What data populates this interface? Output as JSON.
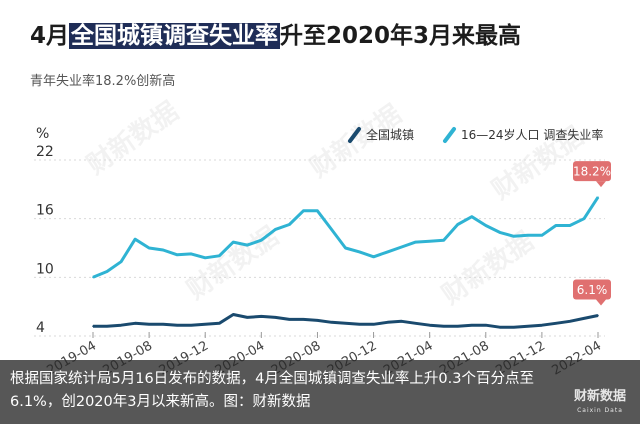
{
  "header": {
    "title_prefix": "4月",
    "title_highlight": "全国城镇调查失业率",
    "title_suffix": "升至2020年3月来最高",
    "subtitle": "青年失业率18.2%创新高"
  },
  "caption": {
    "text": "根据国家统计局5月16日发布的数据，4月全国城镇调查失业率上升0.3个百分点至6.1%，创2020年3月以来新高。图：财新数据",
    "logo": "财新数据",
    "logo_sub": "Caixin Data"
  },
  "watermark": "财新数据",
  "colors": {
    "national": "#1a4a6e",
    "youth": "#2fb3d3",
    "label_bg": "#e07070",
    "grid": "#d9d9d9"
  },
  "chart_data": {
    "type": "line",
    "unit_label": "%",
    "ylim": [
      4,
      22
    ],
    "yticks": [
      4,
      10,
      16,
      22
    ],
    "x": [
      "2019-04",
      "2019-05",
      "2019-06",
      "2019-07",
      "2019-08",
      "2019-09",
      "2019-10",
      "2019-11",
      "2019-12",
      "2020-01",
      "2020-02",
      "2020-03",
      "2020-04",
      "2020-05",
      "2020-06",
      "2020-07",
      "2020-08",
      "2020-09",
      "2020-10",
      "2020-11",
      "2020-12",
      "2021-01",
      "2021-02",
      "2021-03",
      "2021-04",
      "2021-05",
      "2021-06",
      "2021-07",
      "2021-08",
      "2021-09",
      "2021-10",
      "2021-11",
      "2021-12",
      "2022-01",
      "2022-02",
      "2022-03",
      "2022-04"
    ],
    "xtick_labels": [
      "2019-04",
      "2019-08",
      "2019-12",
      "2020-04",
      "2020-08",
      "2020-12",
      "2021-04",
      "2021-08",
      "2021-12",
      "2022-04"
    ],
    "legend_position": "top-right",
    "series": [
      {
        "name": "全国城镇",
        "values": [
          5.0,
          5.0,
          5.1,
          5.3,
          5.2,
          5.2,
          5.1,
          5.1,
          5.2,
          5.3,
          6.2,
          5.9,
          6.0,
          5.9,
          5.7,
          5.7,
          5.6,
          5.4,
          5.3,
          5.2,
          5.2,
          5.4,
          5.5,
          5.3,
          5.1,
          5.0,
          5.0,
          5.1,
          5.1,
          4.9,
          4.9,
          5.0,
          5.1,
          5.3,
          5.5,
          5.8,
          6.1
        ],
        "end_label": "6.1%"
      },
      {
        "name": "16—24岁人口 调查失业率",
        "values": [
          10.0,
          10.6,
          11.6,
          13.9,
          13.0,
          12.8,
          12.3,
          12.4,
          12.0,
          12.2,
          13.6,
          13.3,
          13.8,
          14.9,
          15.4,
          16.8,
          16.8,
          14.9,
          13.0,
          12.6,
          12.1,
          12.6,
          13.1,
          13.6,
          13.7,
          13.8,
          15.4,
          16.2,
          15.3,
          14.6,
          14.2,
          14.3,
          14.3,
          15.3,
          15.3,
          16.0,
          18.2
        ],
        "end_label": "18.2%"
      }
    ]
  }
}
